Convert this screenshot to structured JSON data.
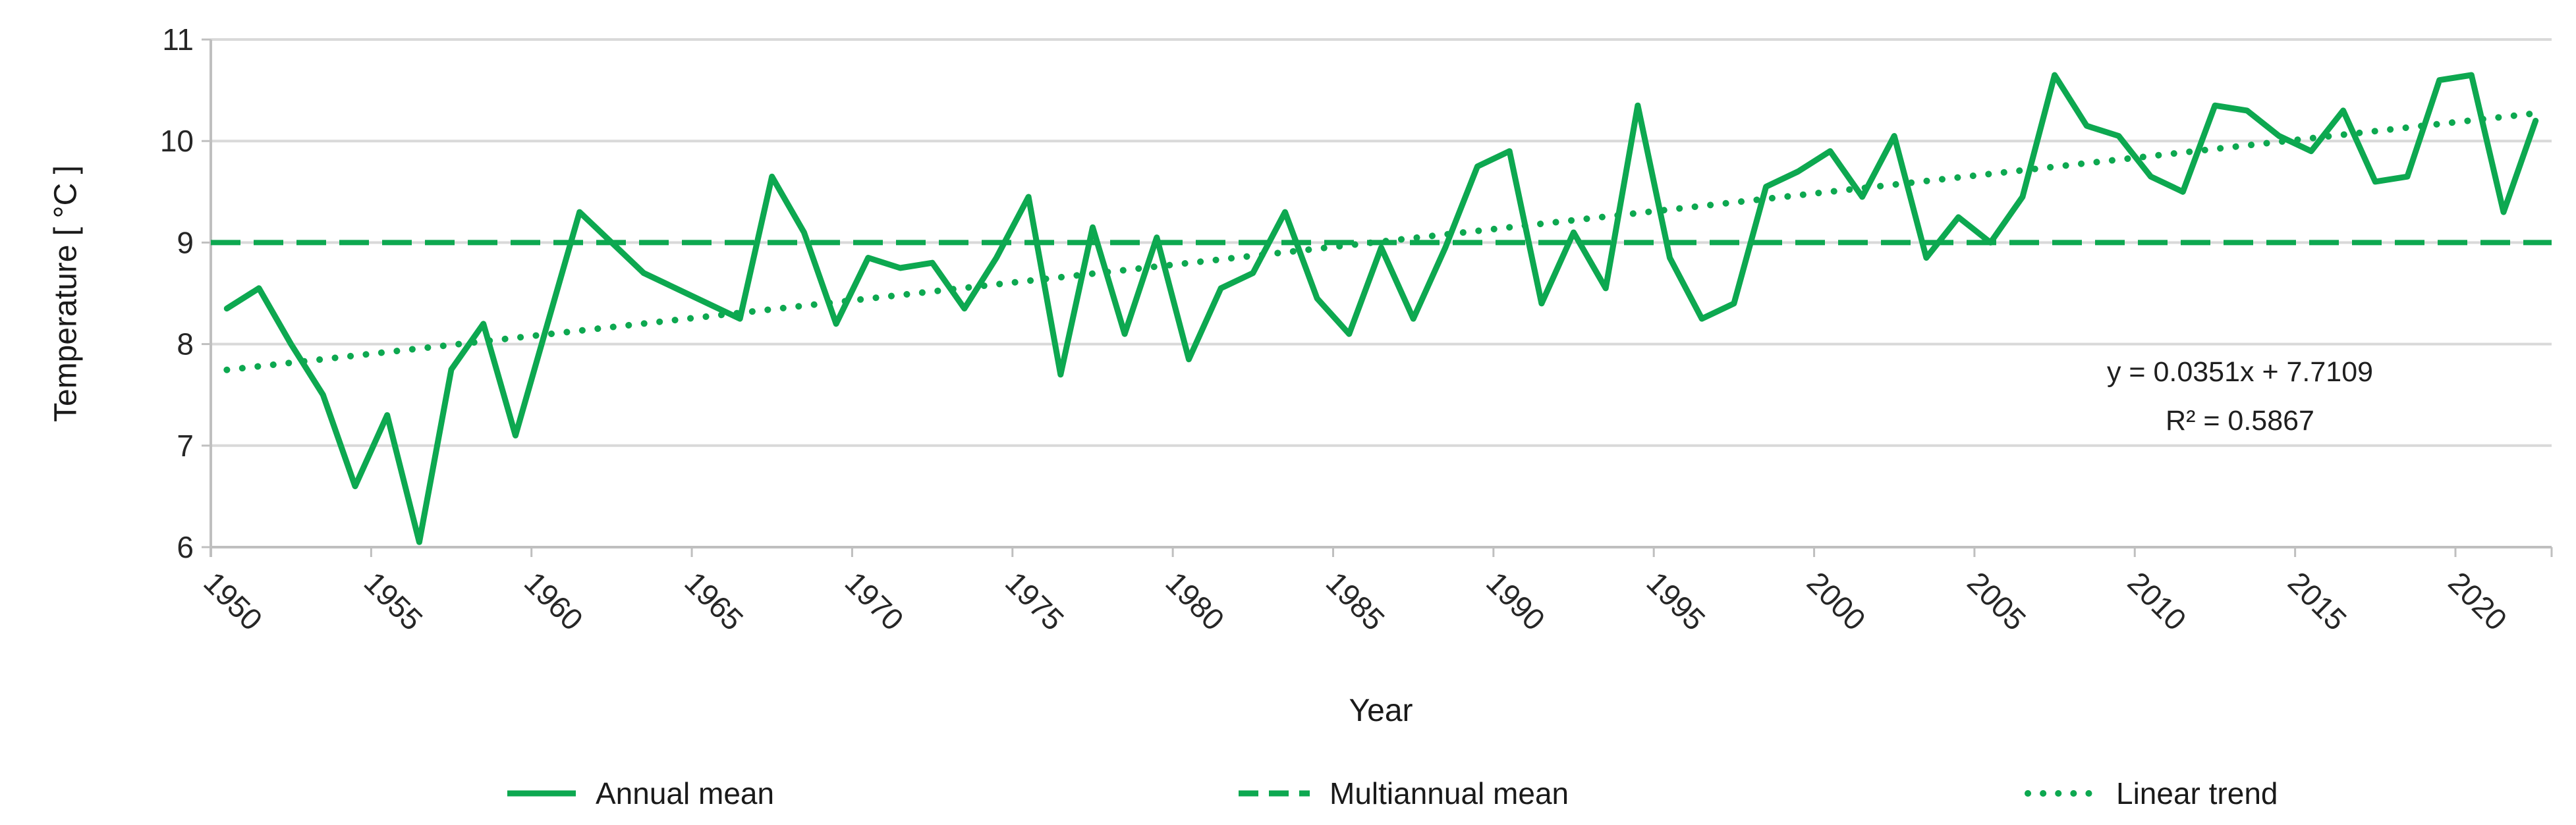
{
  "chart_data": {
    "type": "line",
    "title": "",
    "xlabel": "Year",
    "ylabel": "Temperature [ °C ]",
    "ylim": [
      6,
      11
    ],
    "y_ticks": [
      6,
      7,
      8,
      9,
      10,
      11
    ],
    "x_tick_labels": [
      1950,
      1955,
      1960,
      1965,
      1970,
      1975,
      1980,
      1985,
      1990,
      1995,
      2000,
      2005,
      2010,
      2015,
      2020
    ],
    "grid": "horizontal",
    "legend_position": "bottom",
    "x": [
      1950,
      1951,
      1952,
      1953,
      1954,
      1955,
      1956,
      1957,
      1958,
      1959,
      1960,
      1961,
      1962,
      1963,
      1964,
      1965,
      1966,
      1967,
      1968,
      1969,
      1970,
      1971,
      1972,
      1973,
      1974,
      1975,
      1976,
      1977,
      1978,
      1979,
      1980,
      1981,
      1982,
      1983,
      1984,
      1985,
      1986,
      1987,
      1988,
      1989,
      1990,
      1991,
      1992,
      1993,
      1994,
      1995,
      1996,
      1997,
      1998,
      1999,
      2000,
      2001,
      2002,
      2003,
      2004,
      2005,
      2006,
      2007,
      2008,
      2009,
      2010,
      2011,
      2012,
      2013,
      2014,
      2015,
      2016,
      2017,
      2018,
      2019,
      2020,
      2021,
      2022
    ],
    "series": [
      {
        "name": "Annual mean",
        "style": "solid",
        "values": [
          8.35,
          8.55,
          8.0,
          7.5,
          6.6,
          7.3,
          6.05,
          7.75,
          8.2,
          7.1,
          8.2,
          9.3,
          9.0,
          8.7,
          8.55,
          8.4,
          8.25,
          9.65,
          9.1,
          8.2,
          8.85,
          8.75,
          8.8,
          8.35,
          8.85,
          9.45,
          7.7,
          9.15,
          8.1,
          9.05,
          7.85,
          8.55,
          8.7,
          9.3,
          8.45,
          8.1,
          8.95,
          8.25,
          8.95,
          9.75,
          9.9,
          8.4,
          9.1,
          8.55,
          10.35,
          8.85,
          8.25,
          8.4,
          9.55,
          9.7,
          9.9,
          9.45,
          10.05,
          8.85,
          9.25,
          9.0,
          9.45,
          10.65,
          10.15,
          10.05,
          9.65,
          9.5,
          10.35,
          10.3,
          10.05,
          9.9,
          10.3,
          9.6,
          9.65,
          10.6,
          10.65,
          9.3,
          10.2
        ]
      },
      {
        "name": "Multiannual mean",
        "style": "dashed",
        "constant_value": 9.0
      },
      {
        "name": "Linear trend",
        "style": "dotted",
        "slope": 0.0351,
        "intercept": 7.7109
      }
    ]
  },
  "annotation": {
    "line1": "y = 0.0351x + 7.7109",
    "line2": "R² = 0.5867"
  },
  "axes": {
    "x_label": "Year",
    "y_label": "Temperature [ °C ]"
  },
  "legend": {
    "items": [
      {
        "label": "Annual mean",
        "style": "solid"
      },
      {
        "label": "Multiannual mean",
        "style": "dashed"
      },
      {
        "label": "Linear trend",
        "style": "dotted"
      }
    ]
  },
  "colors": {
    "series_green": "#0DA850",
    "gridline": "#D9D9D9",
    "axis_line": "#BFBFBF",
    "tick_text": "#262626"
  }
}
